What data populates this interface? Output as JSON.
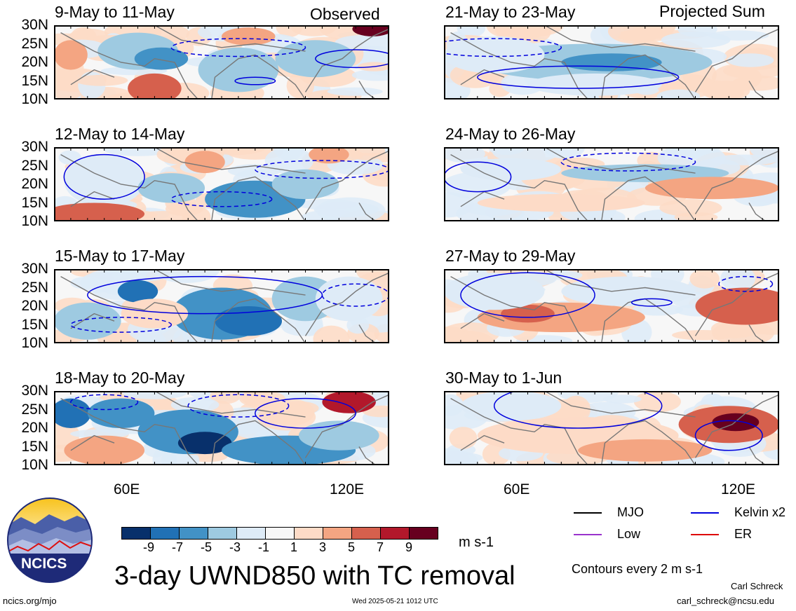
{
  "colors": {
    "levels": [
      "#08306b",
      "#2171b5",
      "#4292c6",
      "#9ecae1",
      "#deebf7",
      "#f7f7f7",
      "#fddbc7",
      "#f4a582",
      "#d6604d",
      "#b2182b",
      "#67001f"
    ],
    "kelvin": "#0000dd",
    "coast": "#777777"
  },
  "header_labels": {
    "observed": "Observed",
    "projected": "Projected Sum"
  },
  "panels": [
    {
      "title": "9-May to 11-May"
    },
    {
      "title": "21-May to 23-May"
    },
    {
      "title": "12-May to 14-May"
    },
    {
      "title": "24-May to 26-May"
    },
    {
      "title": "15-May to 17-May"
    },
    {
      "title": "27-May to 29-May"
    },
    {
      "title": "18-May to 20-May"
    },
    {
      "title": "30-May to 1-Jun"
    }
  ],
  "chart_data": {
    "type": "heatmap",
    "variable": "3-day UWND850 with TC removal",
    "units": "m s-1",
    "y_ticks": [
      "30N",
      "25N",
      "20N",
      "15N",
      "10N"
    ],
    "x_ticks": [
      "60E",
      "120E"
    ],
    "colorbar_levels": [
      "-9",
      "-7",
      "-5",
      "-3",
      "-1",
      "1",
      "3",
      "5",
      "7",
      "9"
    ],
    "contour_note": "Contours every 2 m s-1"
  },
  "legend": [
    {
      "label": "MJO",
      "color": "#000000"
    },
    {
      "label": "Kelvin x2",
      "color": "#0000dd"
    },
    {
      "label": "Low",
      "color": "#9933cc"
    },
    {
      "label": "ER",
      "color": "#dd0000"
    }
  ],
  "footer": {
    "title": "3-day UWND850 with TC removal",
    "units": "m s-1",
    "contours": "Contours every 2 m s-1",
    "url": "ncics.org/mjo",
    "timestamp": "Wed 2025-05-21 1012 UTC",
    "author": "Carl Schreck",
    "email": "carl_schreck@ncsu.edu",
    "logo_text": "NCICS"
  }
}
